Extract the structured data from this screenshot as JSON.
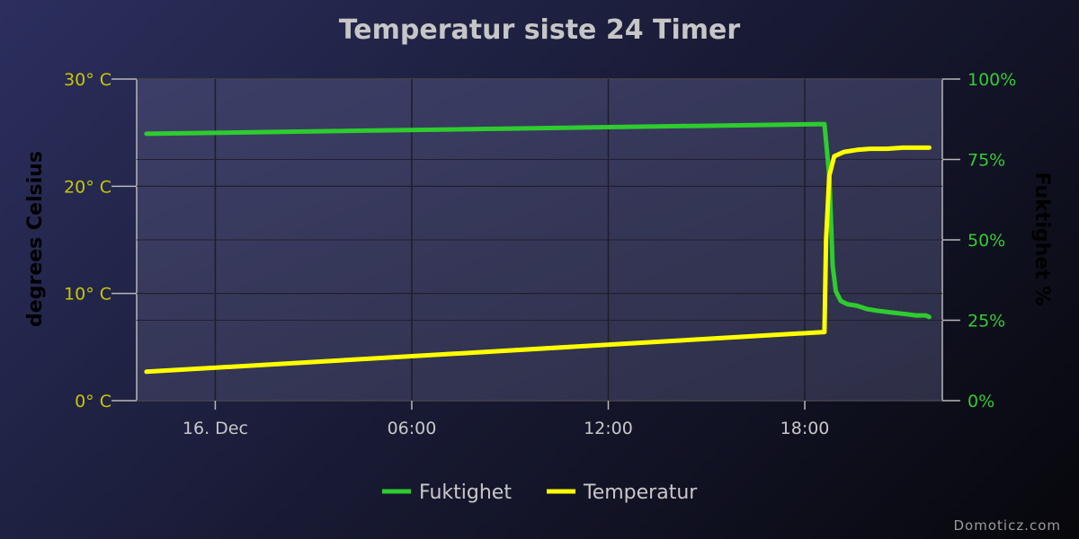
{
  "chart_data": {
    "type": "line",
    "title": "Temperatur siste 24 Timer",
    "x_axis": {
      "ticks": [
        "16. Dec",
        "06:00",
        "12:00",
        "18:00"
      ],
      "tick_hours": [
        0,
        6,
        12,
        18
      ],
      "range_hours": [
        -2.4,
        22.2
      ]
    },
    "y_left": {
      "label": "degrees Celsius",
      "range": [
        0,
        30
      ],
      "ticks": [
        "0° C",
        "10° C",
        "20° C",
        "30° C"
      ],
      "tick_values": [
        0,
        10,
        20,
        30
      ],
      "color": "#c8c800"
    },
    "y_right": {
      "label": "Fuktighet %",
      "range": [
        0,
        100
      ],
      "ticks": [
        "0%",
        "25%",
        "50%",
        "75%",
        "100%"
      ],
      "tick_values": [
        0,
        25,
        50,
        75,
        100
      ],
      "color": "#33cc33"
    },
    "series": [
      {
        "name": "Fuktighet",
        "axis": "right",
        "color": "#2ecc2e",
        "points": [
          [
            -2.1,
            83
          ],
          [
            18.6,
            86
          ],
          [
            18.75,
            70
          ],
          [
            18.85,
            42
          ],
          [
            18.95,
            34
          ],
          [
            19.1,
            31
          ],
          [
            19.3,
            30
          ],
          [
            19.6,
            29.5
          ],
          [
            19.9,
            28.5
          ],
          [
            20.2,
            28
          ],
          [
            20.6,
            27.5
          ],
          [
            21.0,
            27
          ],
          [
            21.4,
            26.5
          ],
          [
            21.7,
            26.5
          ],
          [
            21.8,
            26
          ]
        ]
      },
      {
        "name": "Temperatur",
        "axis": "left",
        "color": "#ffff00",
        "points": [
          [
            -2.1,
            2.7
          ],
          [
            18.6,
            6.4
          ],
          [
            18.65,
            15
          ],
          [
            18.75,
            21
          ],
          [
            18.9,
            22.8
          ],
          [
            19.2,
            23.2
          ],
          [
            19.6,
            23.4
          ],
          [
            20.0,
            23.5
          ],
          [
            20.5,
            23.5
          ],
          [
            21.0,
            23.6
          ],
          [
            21.5,
            23.6
          ],
          [
            21.8,
            23.6
          ]
        ]
      }
    ],
    "legend": [
      "Fuktighet",
      "Temperatur"
    ],
    "legend_position": "bottom-center",
    "grid": true
  },
  "credit": "Domoticz.com"
}
